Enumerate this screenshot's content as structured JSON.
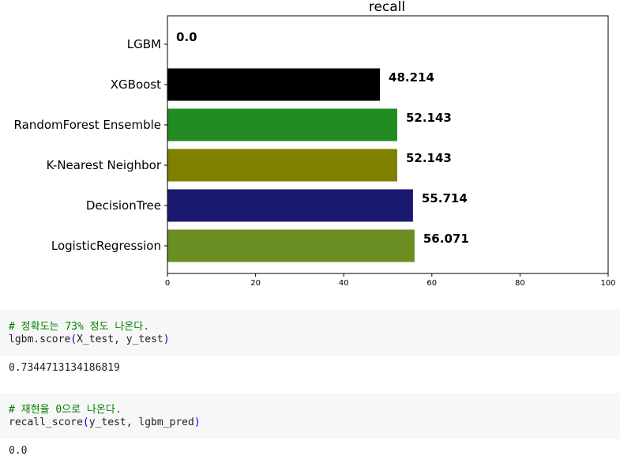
{
  "chart_data": {
    "type": "bar",
    "orientation": "horizontal",
    "title": "recall",
    "categories": [
      "LogisticRegression",
      "DecisionTree",
      "K-Nearest Neighbor",
      "RandomForest Ensemble",
      "XGBoost",
      "LGBM"
    ],
    "values": [
      56.071,
      55.714,
      52.143,
      52.143,
      48.214,
      0.0
    ],
    "data_labels": [
      "56.071",
      "55.714",
      "52.143",
      "52.143",
      "48.214",
      "0.0"
    ],
    "colors": [
      "#6b8e23",
      "#191970",
      "#808000",
      "#228b22",
      "#000000",
      "#ffffff"
    ],
    "xlim": [
      0,
      100
    ],
    "xticks": [
      0,
      20,
      40,
      60,
      80,
      100
    ],
    "xlabel": "",
    "ylabel": "",
    "grid": false
  },
  "cells": [
    {
      "comment": "# 정확도는 73% 정도 나온다.",
      "code_fn": "lgbm.score",
      "code_args": "X_test, y_test",
      "output": "0.7344713134186819"
    },
    {
      "comment": "# 재현율 0으로 나온다.",
      "code_fn": "recall_score",
      "code_args": "y_test, lgbm_pred",
      "output": "0.0"
    }
  ]
}
